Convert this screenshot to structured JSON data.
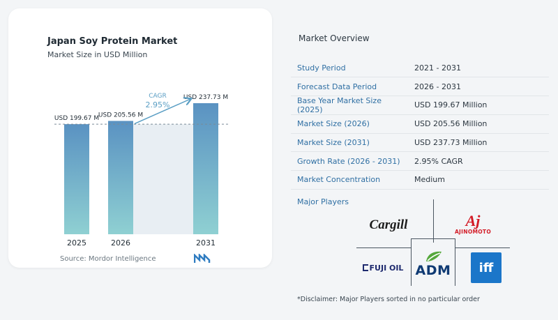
{
  "chart_data": {
    "type": "bar",
    "title": "Japan Soy Protein Market",
    "subtitle": "Market Size in USD Million",
    "categories": [
      "2025",
      "2026",
      "2031"
    ],
    "values": [
      199.67,
      205.56,
      237.73
    ],
    "data_labels": [
      "USD 199.67 M",
      "USD 205.56 M",
      "USD 237.73 M"
    ],
    "cagr_label": "CAGR",
    "cagr_value": "2.95%",
    "colors": {
      "bar_top": "#5a92c2",
      "bar_bottom": "#8fd0d2",
      "arrow": "#5a9ec4",
      "cagr_text": "#5a9ec4",
      "shade": "#e8eef3"
    },
    "grid": false
  },
  "source": "Source: Mordor Intelligence",
  "overview": {
    "title": "Market Overview",
    "rows": [
      {
        "label": "Study Period",
        "value": "2021 - 2031"
      },
      {
        "label": "Forecast Data Period",
        "value": "2026 - 2031"
      },
      {
        "label": "Base Year Market Size (2025)",
        "value": "USD 199.67 Million"
      },
      {
        "label": "Market Size (2026)",
        "value": "USD 205.56 Million"
      },
      {
        "label": "Market Size (2031)",
        "value": "USD 237.73 Million"
      },
      {
        "label": "Growth Rate (2026 - 2031)",
        "value": "2.95% CAGR"
      },
      {
        "label": "Market Concentration",
        "value": "Medium"
      }
    ],
    "players_title": "Major Players",
    "players": [
      "Cargill",
      "Ajinomoto",
      "FUJI OIL",
      "ADM",
      "iff"
    ],
    "player_logo_text": {
      "cargill": "Cargill",
      "ajinomoto_mark": "Aj",
      "ajinomoto": "AJINOMOTO",
      "fujioil": "FUJI OIL",
      "adm": "ADM",
      "iff": "iff"
    },
    "disclaimer": "*Disclaimer: Major Players sorted in no particular order"
  }
}
